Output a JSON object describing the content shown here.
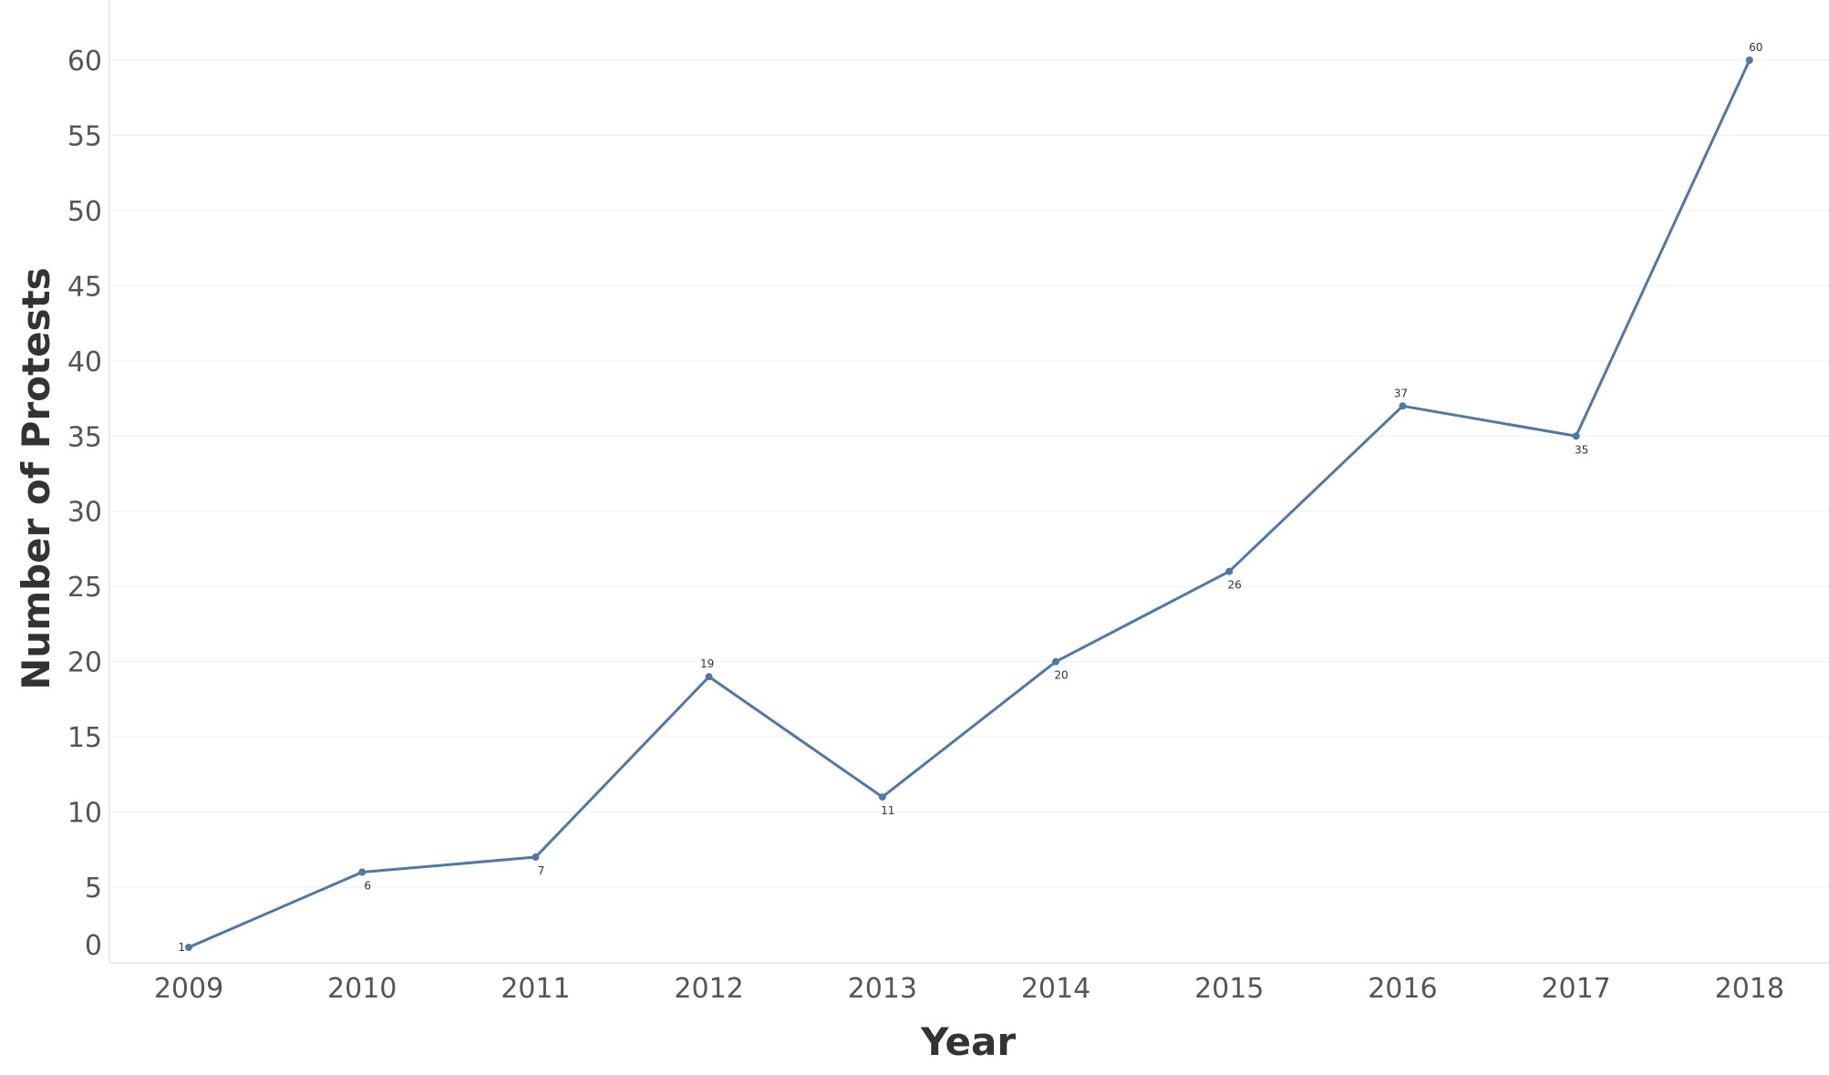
{
  "chart_data": {
    "type": "line",
    "categories": [
      "2009",
      "2010",
      "2011",
      "2012",
      "2013",
      "2014",
      "2015",
      "2016",
      "2017",
      "2018"
    ],
    "series": [
      {
        "values": [
          1,
          6,
          7,
          19,
          11,
          20,
          26,
          37,
          35,
          60
        ],
        "color": "#4e79a7"
      }
    ],
    "data_labels": [
      "1",
      "6",
      "7",
      "19",
      "11",
      "20",
      "26",
      "37",
      "35",
      "60"
    ],
    "xlabel": "Year",
    "ylabel": "Number of Protests",
    "yticks": [
      0,
      5,
      10,
      15,
      20,
      25,
      30,
      35,
      40,
      45,
      50,
      55,
      60
    ],
    "ylim": [
      1,
      60
    ],
    "grid": true,
    "legend": "none"
  }
}
